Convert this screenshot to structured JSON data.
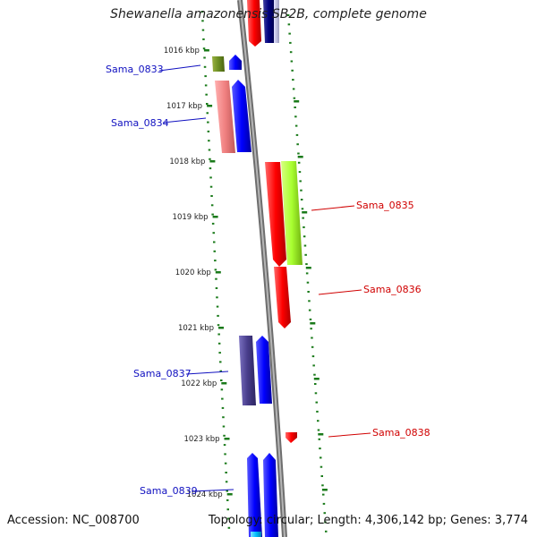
{
  "title": "Shewanella amazonensis SB2B, complete genome",
  "accession": "Accession: NC_008700",
  "summary": "Topology: circular; Length: 4,306,142 bp; Genes: 3,774",
  "colors": {
    "backbone": "#8f8f8f",
    "tick": "#1a7a1a",
    "label_left": "#1010c0",
    "label_right": "#d00000"
  },
  "kbp_labels": [
    "1016 kbp",
    "1017 kbp",
    "1018 kbp",
    "1019 kbp",
    "1020 kbp",
    "1021 kbp",
    "1022 kbp",
    "1023 kbp",
    "1024 kbp"
  ],
  "gene_labels": [
    {
      "text": "Sama_0833",
      "side": "left"
    },
    {
      "text": "Sama_0834",
      "side": "left"
    },
    {
      "text": "Sama_0835",
      "side": "right"
    },
    {
      "text": "Sama_0836",
      "side": "right"
    },
    {
      "text": "Sama_0837",
      "side": "left"
    },
    {
      "text": "Sama_0838",
      "side": "right"
    },
    {
      "text": "Sama_0839",
      "side": "left"
    }
  ]
}
